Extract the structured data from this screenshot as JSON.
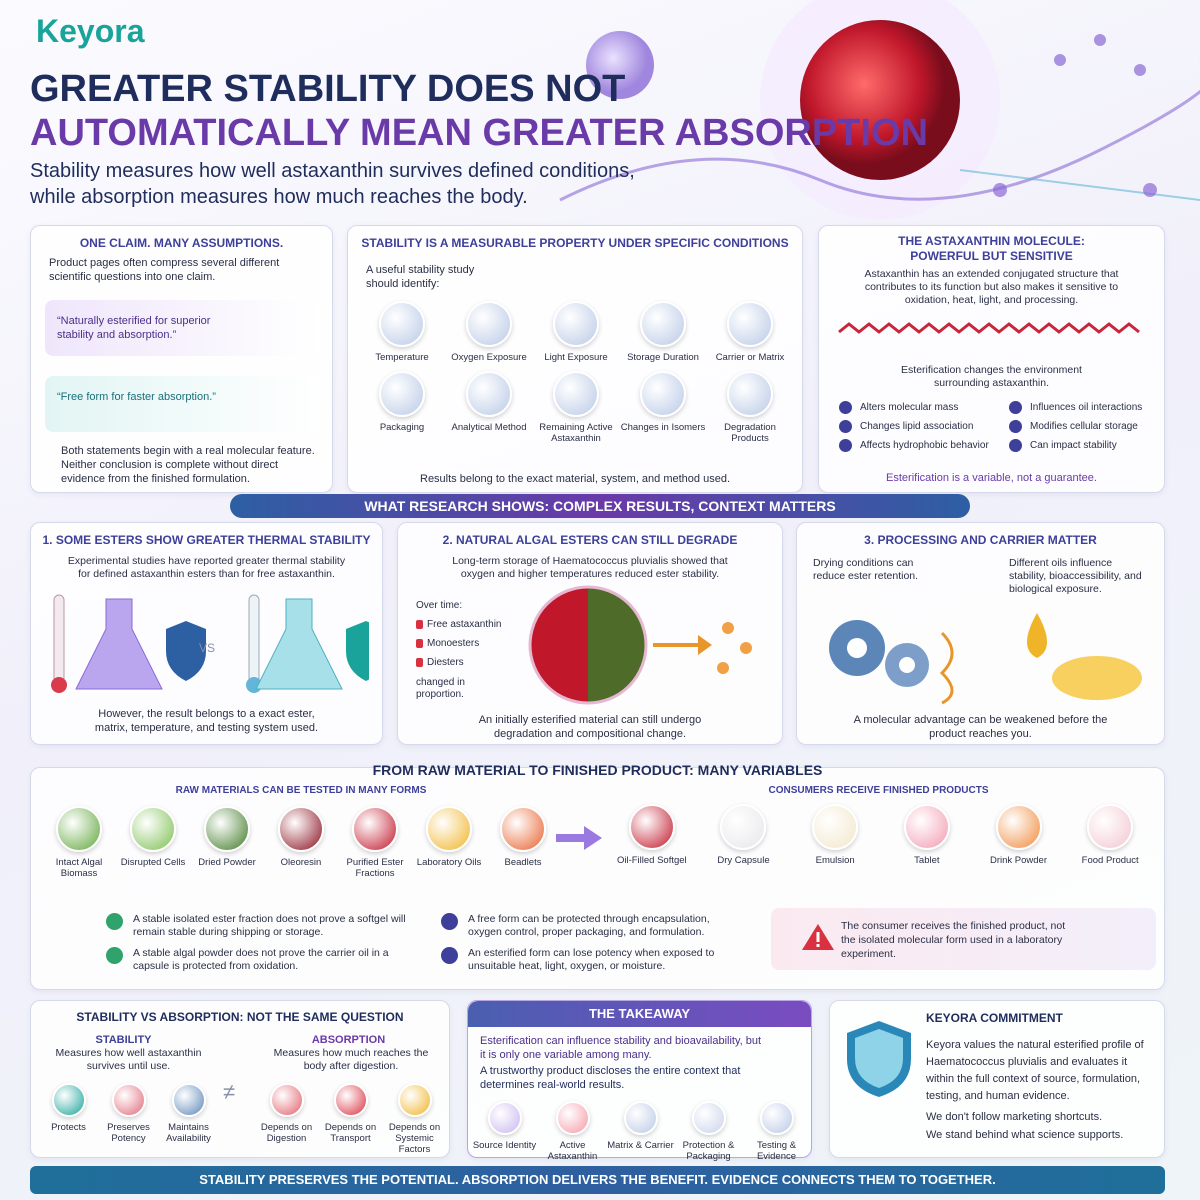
{
  "header": {
    "logo": "Keyora",
    "title_line1": "GREATER STABILITY DOES NOT",
    "title_line2": "AUTOMATICALLY MEAN GREATER ABSORPTION",
    "subtitle_line1": "Stability measures how well astaxanthin survives defined conditions,",
    "subtitle_line2": "while absorption measures how much reaches the body."
  },
  "claims": {
    "title": "ONE CLAIM. MANY ASSUMPTIONS.",
    "intro": "Product pages often compress several different scientific questions into one claim.",
    "claim1": "“Naturally esterified for superior stability and absorption.”",
    "claim2": "“Free form for faster absorption.”",
    "footer": "Both statements begin with a real molecular feature. Neither conclusion is complete without direct evidence from the finished formulation."
  },
  "stability": {
    "title": "STABILITY IS A MEASURABLE PROPERTY UNDER SPECIFIC CONDITIONS",
    "intro": "A useful stability study should identify:",
    "items": [
      "Temperature",
      "Oxygen Exposure",
      "Light Exposure",
      "Storage Duration",
      "Carrier or Matrix",
      "Packaging",
      "Analytical Method",
      "Remaining Active Astaxanthin",
      "Changes in Isomers",
      "Degradation Products"
    ],
    "footer": "Results belong to the exact material, system, and method used."
  },
  "molecule": {
    "title": "THE ASTAXANTHIN MOLECULE: POWERFUL BUT SENSITIVE",
    "text": "Astaxanthin has an extended conjugated structure that contributes to its function but also makes it sensitive to oxidation, heat, light, and processing.",
    "esterification": "Esterification changes the environment surrounding astaxanthin.",
    "effects": [
      "Alters molecular mass",
      "Influences oil interactions",
      "Changes lipid association",
      "Modifies cellular storage",
      "Affects hydrophobic behavior",
      "Can impact stability"
    ],
    "footer": "Esterification is a variable, not a guarantee."
  },
  "research": {
    "banner": "WHAT RESEARCH SHOWS: COMPLEX RESULTS, CONTEXT MATTERS",
    "panel1": {
      "title": "1. SOME ESTERS SHOW GREATER THERMAL STABILITY",
      "text": "Experimental studies have reported greater thermal stability for defined astaxanthin esters than for free astaxanthin.",
      "vs": "VS",
      "footer": "However, the result belongs to a exact ester, matrix, temperature, and testing system used."
    },
    "panel2": {
      "title": "2. NATURAL ALGAL ESTERS CAN STILL DEGRADE",
      "text": "Long-term storage of Haematococcus pluvialis showed that oxygen and higher temperatures reduced ester stability.",
      "over_time": "Over time:",
      "forms": [
        "Free astaxanthin",
        "Monoesters",
        "Diesters"
      ],
      "note": "changed in proportion.",
      "footer": "An initially esterified material can still undergo degradation and compositional change."
    },
    "panel3": {
      "title": "3. PROCESSING AND CARRIER MATTER",
      "left": "Drying conditions can reduce ester retention.",
      "right": "Different oils influence stability, bioaccessibility, and biological exposure.",
      "footer": "A molecular advantage can be weakened before the product reaches you."
    }
  },
  "variables": {
    "title": "FROM RAW MATERIAL TO FINISHED PRODUCT: MANY VARIABLES",
    "raw_title": "RAW MATERIALS CAN BE TESTED IN MANY FORMS",
    "raw": [
      "Intact Algal Biomass",
      "Disrupted Cells",
      "Dried Powder",
      "Oleoresin",
      "Purified Ester Fractions",
      "Laboratory Oils",
      "Beadlets"
    ],
    "consumer_title": "CONSUMERS RECEIVE FINISHED PRODUCTS",
    "products": [
      "Oil-Filled Softgel",
      "Dry Capsule",
      "Emulsion",
      "Tablet",
      "Drink Powder",
      "Food Product"
    ],
    "checks": [
      "A stable isolated ester fraction does not prove a softgel will remain stable during shipping or storage.",
      "A stable algal powder does not prove the carrier oil in a capsule is protected from oxidation."
    ],
    "infos": [
      "A free form can be protected through encapsulation, oxygen control, proper packaging, and formulation.",
      "An esterified form can lose potency when exposed to unsuitable heat, light, oxygen, or moisture."
    ],
    "warning": "The consumer receives the finished product, not the isolated molecular form used in a laboratory experiment."
  },
  "compare": {
    "title": "STABILITY VS ABSORPTION: NOT THE SAME QUESTION",
    "stability_title": "STABILITY",
    "stability_text": "Measures how well astaxanthin survives until use.",
    "absorption_title": "ABSORPTION",
    "absorption_text": "Measures how much reaches the body after digestion.",
    "neq": "≠",
    "stability_items": [
      "Protects",
      "Preserves Potency",
      "Maintains Availability"
    ],
    "absorption_items": [
      "Depends on Digestion",
      "Depends on Transport",
      "Depends on Systemic Factors"
    ]
  },
  "takeaway": {
    "title": "THE TAKEAWAY",
    "text1": "Esterification can influence stability and bioavailability, but it is only one variable among many.",
    "text2": "A trustworthy product discloses the entire context that determines real-world results.",
    "items": [
      "Source Identity",
      "Active Astaxanthin",
      "Matrix & Carrier",
      "Protection & Packaging",
      "Testing & Evidence"
    ]
  },
  "commitment": {
    "title": "KEYORA COMMITMENT",
    "text": "Keyora values the natural esterified profile of Haematococcus pluvialis and evaluates it within the full context of source, formulation, testing, and human evidence.",
    "line1": "We don't follow marketing shortcuts.",
    "line2": "We stand behind what science supports."
  },
  "footer": {
    "text": "STABILITY PRESERVES THE POTENTIAL. ABSORPTION DELIVERS THE BENEFIT. EVIDENCE CONNECTS THEM TO TOGETHER."
  }
}
